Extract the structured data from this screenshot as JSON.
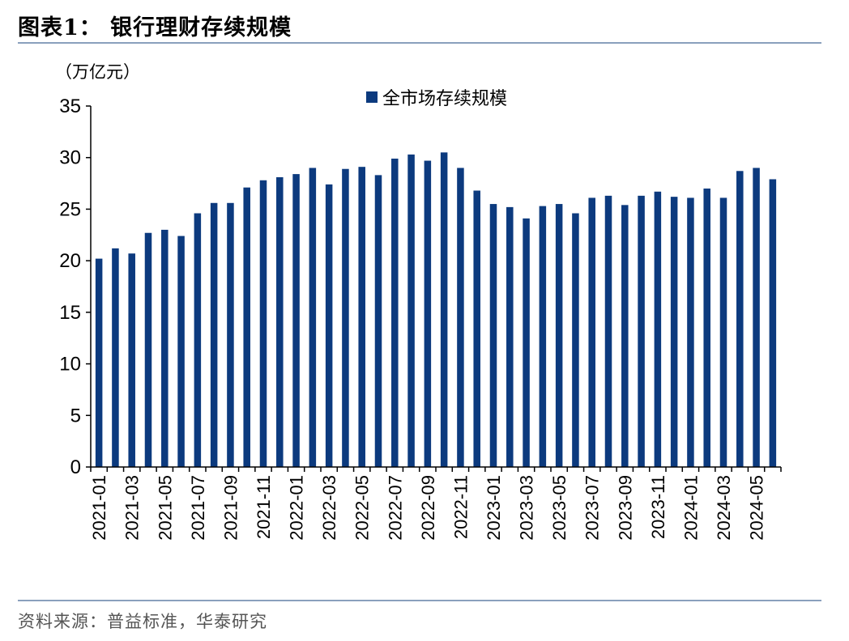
{
  "figure": {
    "title": "图表1：  银行理财存续规模",
    "source": "资料来源：普益标准，华泰研究"
  },
  "colors": {
    "bar": "#0c3a7e",
    "axis": "#000000",
    "rule": "#8aa0bd"
  },
  "chart_data": {
    "type": "bar",
    "unit_label": "（万亿元）",
    "legend": "全市场存续规模",
    "legend_position": "top-center",
    "grid": false,
    "ylim": [
      0,
      35
    ],
    "yticks": [
      0,
      5,
      10,
      15,
      20,
      25,
      30,
      35
    ],
    "xtick_labels": [
      "2021-01",
      "2021-03",
      "2021-05",
      "2021-07",
      "2021-09",
      "2021-11",
      "2022-01",
      "2022-03",
      "2022-05",
      "2022-07",
      "2022-09",
      "2022-11",
      "2023-01",
      "2023-03",
      "2023-05",
      "2023-07",
      "2023-09",
      "2023-11",
      "2024-01",
      "2024-03",
      "2024-05"
    ],
    "categories": [
      "2021-01",
      "2021-02",
      "2021-03",
      "2021-04",
      "2021-05",
      "2021-06",
      "2021-07",
      "2021-08",
      "2021-09",
      "2021-10",
      "2021-11",
      "2021-12",
      "2022-01",
      "2022-02",
      "2022-03",
      "2022-04",
      "2022-05",
      "2022-06",
      "2022-07",
      "2022-08",
      "2022-09",
      "2022-10",
      "2022-11",
      "2022-12",
      "2023-01",
      "2023-02",
      "2023-03",
      "2023-04",
      "2023-05",
      "2023-06",
      "2023-07",
      "2023-08",
      "2023-09",
      "2023-10",
      "2023-11",
      "2023-12",
      "2024-01",
      "2024-02",
      "2024-03",
      "2024-04",
      "2024-05",
      "2024-06"
    ],
    "values": [
      20.2,
      21.2,
      20.7,
      22.7,
      23.0,
      22.4,
      24.6,
      25.6,
      25.6,
      27.1,
      27.8,
      28.1,
      28.4,
      29.0,
      27.4,
      28.9,
      29.1,
      28.3,
      29.9,
      30.3,
      29.7,
      30.5,
      29.0,
      26.8,
      25.5,
      25.2,
      24.1,
      25.3,
      25.5,
      24.6,
      26.1,
      26.3,
      25.4,
      26.3,
      26.7,
      26.2,
      26.1,
      27.0,
      26.1,
      28.7,
      29.0,
      27.9
    ]
  }
}
